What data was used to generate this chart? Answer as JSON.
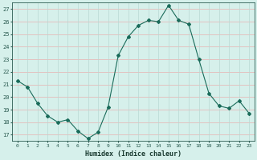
{
  "x": [
    0,
    1,
    2,
    3,
    4,
    5,
    6,
    7,
    8,
    9,
    10,
    11,
    12,
    13,
    14,
    15,
    16,
    17,
    18,
    19,
    20,
    21,
    22,
    23
  ],
  "y": [
    21.3,
    20.8,
    19.5,
    18.5,
    18.0,
    18.2,
    17.3,
    16.7,
    17.2,
    19.2,
    23.3,
    24.8,
    25.7,
    26.1,
    26.0,
    27.3,
    26.1,
    25.8,
    23.0,
    20.3,
    19.3,
    19.1,
    19.7,
    18.7
  ],
  "line_color": "#1a6b5a",
  "marker": "D",
  "marker_size": 2.0,
  "bg_color": "#d6f0eb",
  "grid_color_h": "#e8b0b0",
  "grid_color_v": "#b8d8d4",
  "tick_color": "#2a5a50",
  "label_color": "#1a3a30",
  "xlabel": "Humidex (Indice chaleur)",
  "ylim": [
    16.5,
    27.5
  ],
  "yticks": [
    17,
    18,
    19,
    20,
    21,
    22,
    23,
    24,
    25,
    26,
    27
  ],
  "xticks": [
    0,
    1,
    2,
    3,
    4,
    5,
    6,
    7,
    8,
    9,
    10,
    11,
    12,
    13,
    14,
    15,
    16,
    17,
    18,
    19,
    20,
    21,
    22,
    23
  ]
}
